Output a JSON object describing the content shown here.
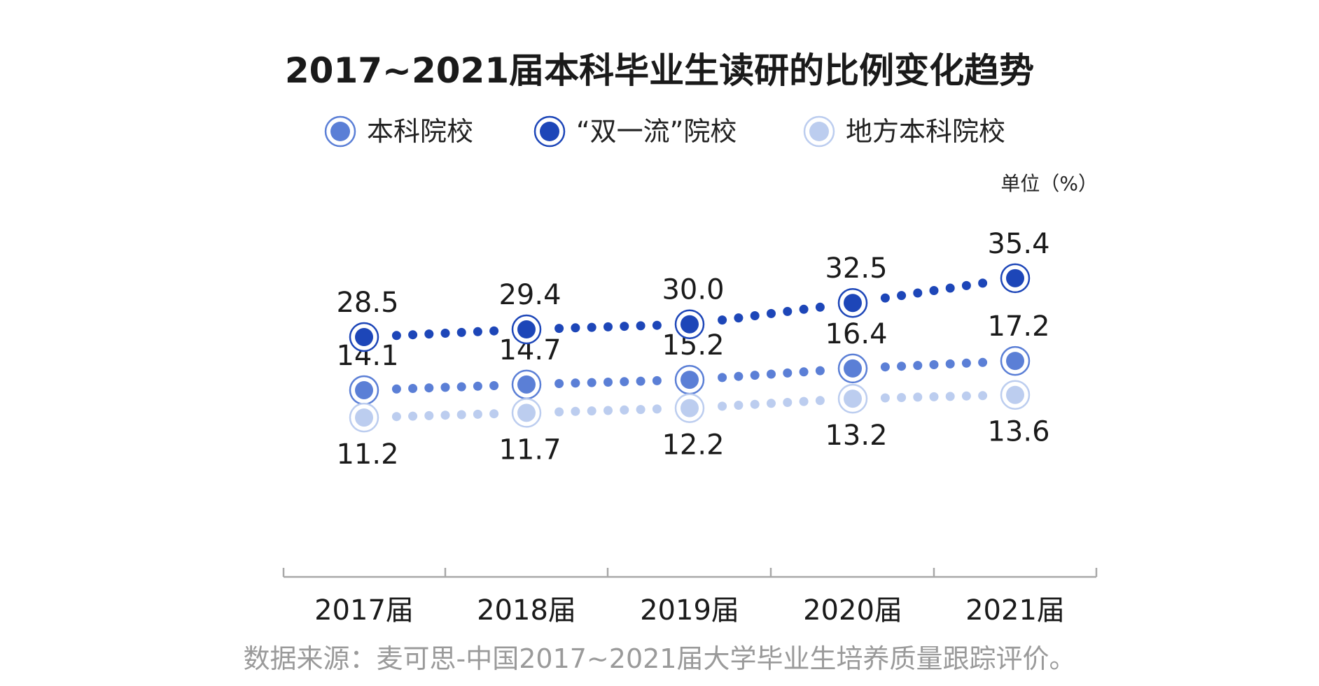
{
  "chart_data": {
    "type": "line",
    "title": "2017~2021届本科毕业生读研的比例变化趋势",
    "unit": "单位（%）",
    "categories": [
      "2017届",
      "2018届",
      "2019届",
      "2020届",
      "2021届"
    ],
    "series": [
      {
        "name": "本科院校",
        "values": [
          14.1,
          14.7,
          15.2,
          16.4,
          17.2
        ],
        "color": "#5b7fd6",
        "label_position": "above"
      },
      {
        "name": "“双一流”院校",
        "values": [
          28.5,
          29.4,
          30.0,
          32.5,
          35.4
        ],
        "color": "#1d46b8",
        "label_position": "above"
      },
      {
        "name": "地方本科院校",
        "values": [
          11.2,
          11.7,
          12.2,
          13.2,
          13.6
        ],
        "color": "#bccdef",
        "label_position": "below"
      }
    ],
    "legend_position": "top",
    "grid": false,
    "source": "数据来源：麦可思-中国2017~2021届大学毕业生培养质量跟踪评价。"
  }
}
